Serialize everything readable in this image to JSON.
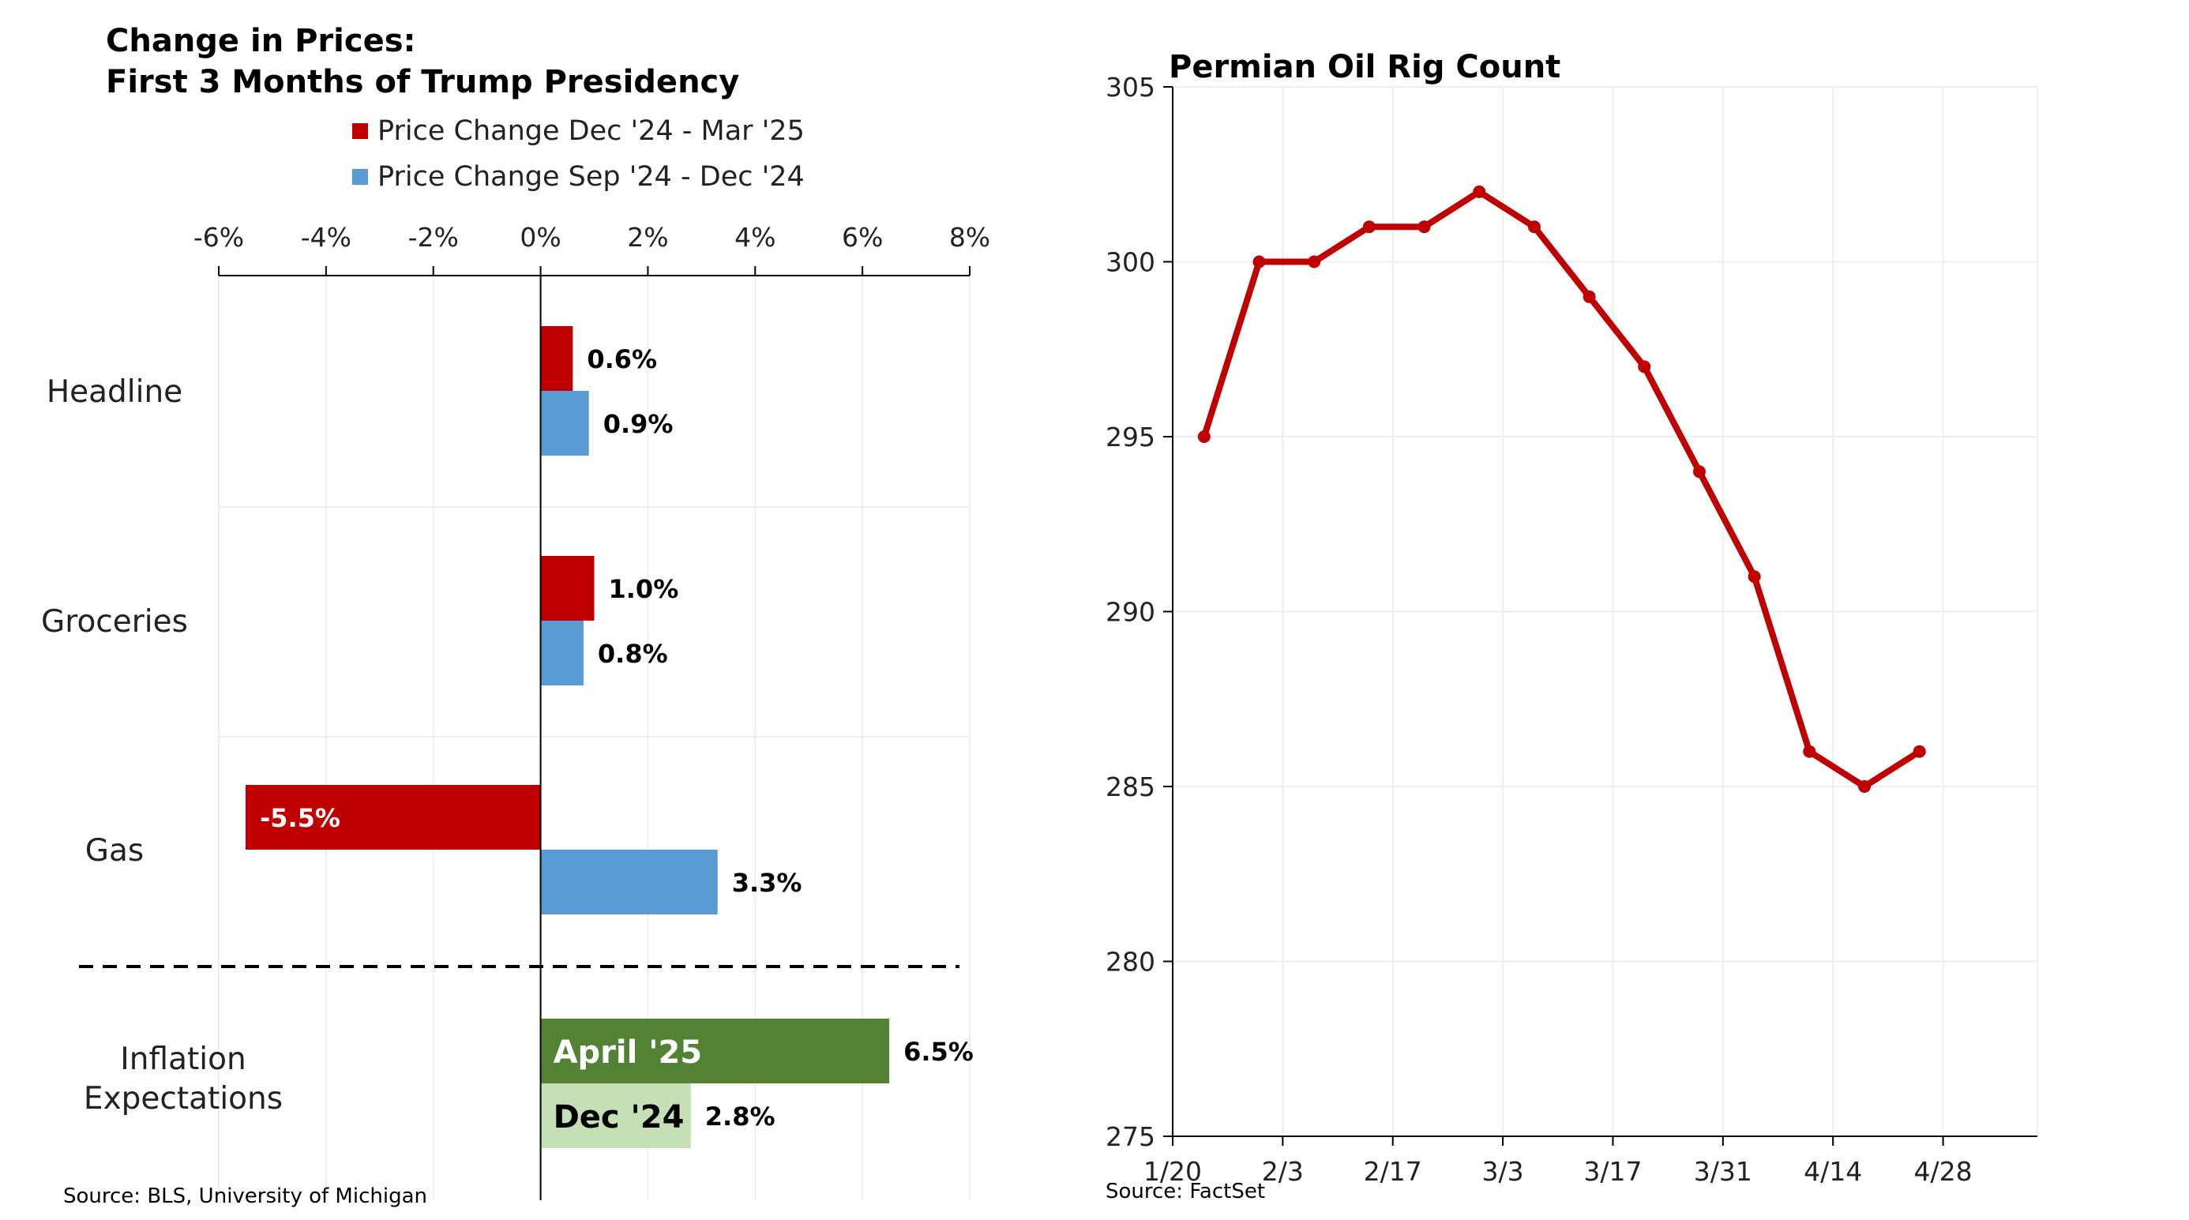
{
  "left": {
    "title_line1": "Change in Prices:",
    "title_line2": "First 3 Months of Trump Presidency",
    "legend": [
      {
        "label": "Price Change Dec '24 - Mar '25",
        "color": "#C00000"
      },
      {
        "label": "Price Change Sep '24 - Dec '24",
        "color": "#5B9BD5"
      }
    ],
    "source": "Source: BLS, University of Michigan"
  },
  "right": {
    "title": "Permian Oil Rig Count",
    "source": "Source: FactSet"
  },
  "chart_data": [
    {
      "type": "bar",
      "orientation": "horizontal",
      "title": "Change in Prices: First 3 Months of Trump Presidency",
      "x_ticks": [
        "-6%",
        "-4%",
        "-2%",
        "0%",
        "2%",
        "4%",
        "6%",
        "8%"
      ],
      "xlim": [
        -6,
        8
      ],
      "categories": [
        "Headline",
        "Groceries",
        "Gas"
      ],
      "series": [
        {
          "name": "Price Change Dec '24 - Mar '25",
          "color": "#C00000",
          "values": [
            0.6,
            1.0,
            -5.5
          ],
          "labels": [
            "0.6%",
            "1.0%",
            "-5.5%"
          ]
        },
        {
          "name": "Price Change Sep '24 - Dec '24",
          "color": "#5B9BD5",
          "values": [
            0.9,
            0.8,
            3.3
          ],
          "labels": [
            "0.9%",
            "0.8%",
            "3.3%"
          ]
        }
      ],
      "inflation_expectations": {
        "category_line1": "Inflation",
        "category_line2": "Expectations",
        "bars": [
          {
            "name": "April '25",
            "value": 6.5,
            "label": "6.5%",
            "color": "#548235",
            "text_color": "#ffffff"
          },
          {
            "name": "Dec '24",
            "value": 2.8,
            "label": "2.8%",
            "color": "#C5E0B4",
            "text_color": "#000000"
          }
        ]
      },
      "grid": true
    },
    {
      "type": "line",
      "title": "Permian Oil Rig Count",
      "x_ticks": [
        "1/20",
        "2/3",
        "2/17",
        "3/3",
        "3/17",
        "3/31",
        "4/14",
        "4/28"
      ],
      "x_tick_days": [
        0,
        14,
        28,
        42,
        56,
        70,
        84,
        98
      ],
      "x_days": [
        4,
        11,
        18,
        25,
        32,
        39,
        46,
        53,
        60,
        67,
        74,
        81,
        88,
        95
      ],
      "y": [
        295,
        300,
        300,
        301,
        301,
        302,
        301,
        299,
        297,
        294,
        291,
        286,
        285,
        286
      ],
      "ylim": [
        275,
        305
      ],
      "y_ticks": [
        275,
        280,
        285,
        290,
        295,
        300,
        305
      ],
      "color": "#C00000",
      "grid": true
    }
  ]
}
